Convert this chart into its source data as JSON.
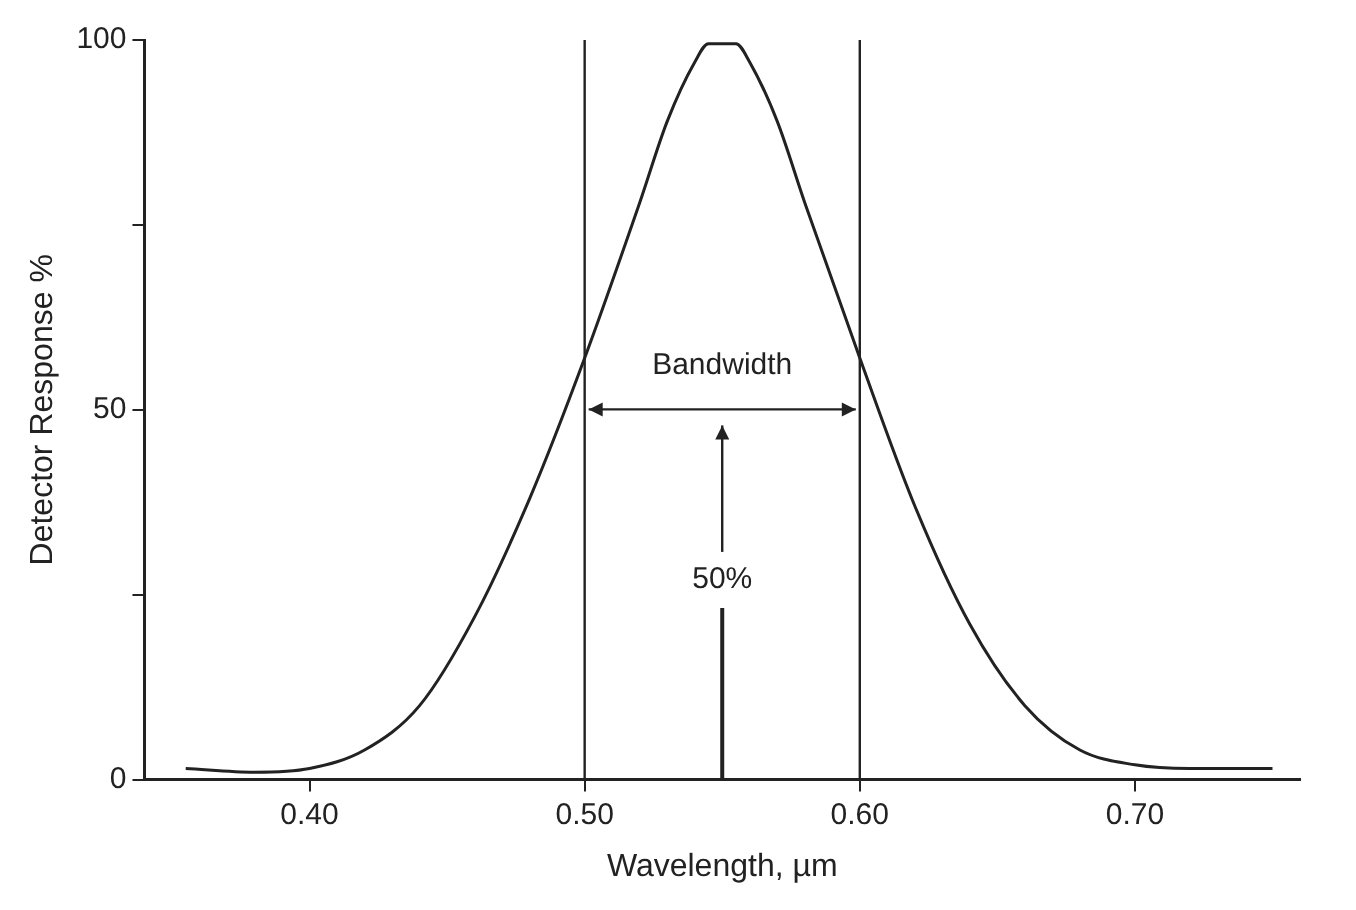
{
  "chart_data": {
    "type": "line",
    "xlabel": "Wavelength, µm",
    "ylabel": "Detector Response %",
    "x": [
      0.355,
      0.38,
      0.4,
      0.42,
      0.44,
      0.46,
      0.48,
      0.5,
      0.52,
      0.53,
      0.54,
      0.545,
      0.555,
      0.56,
      0.57,
      0.58,
      0.6,
      0.62,
      0.64,
      0.66,
      0.68,
      0.7,
      0.72,
      0.75
    ],
    "series": [
      {
        "color": "#222222",
        "values": [
          1.5,
          1,
          1.5,
          4,
          10,
          22,
          38,
          57,
          78,
          89,
          97,
          99.5,
          99.5,
          97,
          89,
          78,
          57,
          37,
          21,
          10,
          4,
          2,
          1.5,
          1.5
        ]
      }
    ],
    "xlim": [
      0.34,
      0.76
    ],
    "xticks": [
      {
        "value": 0.4,
        "label": "0.40"
      },
      {
        "value": 0.5,
        "label": "0.50"
      },
      {
        "value": 0.6,
        "label": "0.60"
      },
      {
        "value": 0.7,
        "label": "0.70"
      }
    ],
    "ylim": [
      0,
      100
    ],
    "yticks": [
      0,
      {
        "value": 25,
        "label": null
      },
      50,
      {
        "value": 75,
        "label": null
      },
      100
    ],
    "ref_lines": [
      {
        "axis": "x",
        "value": 0.5,
        "color": "#222222"
      },
      {
        "axis": "x",
        "value": 0.6,
        "color": "#222222"
      }
    ],
    "annotations": [
      "Bandwidth",
      "50%"
    ],
    "marker": "none",
    "line_style": "solid",
    "grid": false,
    "legend": false
  }
}
